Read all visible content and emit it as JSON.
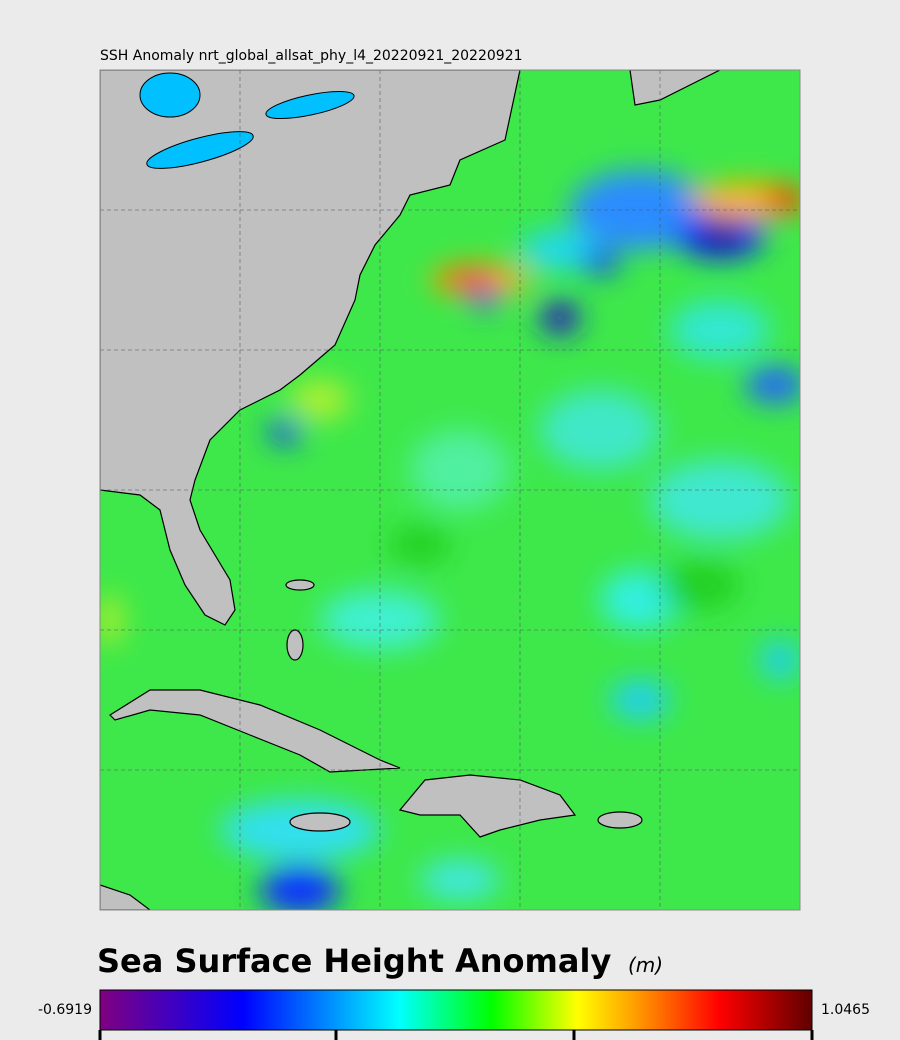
{
  "map_title": "SSH Anomaly nrt_global_allsat_phy_l4_20220921_20220921",
  "colorbar": {
    "title": "Sea Surface Height Anomaly",
    "unit": "(m)",
    "min": -0.6919,
    "max": 1.0465
  }
}
